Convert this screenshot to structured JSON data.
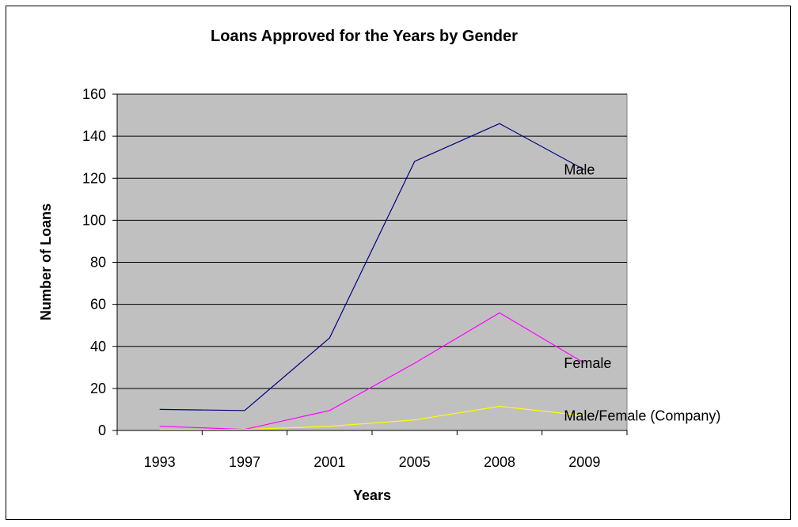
{
  "chart_data": {
    "type": "line",
    "title": "Loans Approved for the Years by Gender",
    "xlabel": "Years",
    "ylabel": "Number of Loans",
    "categories": [
      "1993",
      "1997",
      "2001",
      "2005",
      "2008",
      "2009"
    ],
    "ylim": [
      0,
      160
    ],
    "yticks": [
      0,
      20,
      40,
      60,
      80,
      100,
      120,
      140,
      160
    ],
    "grid": true,
    "plot_background": "#c0c0c0",
    "series": [
      {
        "name": "Male",
        "color": "#000080",
        "values": [
          10,
          9.5,
          44,
          128,
          146,
          124
        ]
      },
      {
        "name": "Female",
        "color": "#ff00ff",
        "values": [
          2,
          0.5,
          9.5,
          32,
          56,
          32
        ]
      },
      {
        "name": "Male/Female (Company)",
        "color": "#ffff00",
        "values": [
          0.5,
          0.5,
          2,
          5,
          11.5,
          7
        ]
      }
    ]
  }
}
